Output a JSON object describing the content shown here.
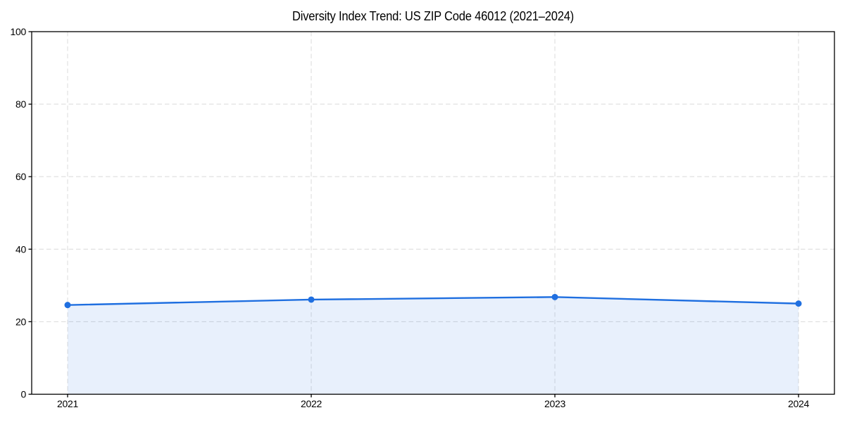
{
  "chart_data": {
    "type": "line",
    "title": "Diversity Index Trend: US ZIP Code 46012 (2021–2024)",
    "x": [
      "2021",
      "2022",
      "2023",
      "2024"
    ],
    "series": [
      {
        "name": "Diversity Index",
        "values": [
          24.6,
          26.1,
          26.8,
          25.0
        ]
      }
    ],
    "xlabel": "",
    "ylabel": "",
    "ylim": [
      0,
      100
    ],
    "yticks": [
      0,
      20,
      40,
      60,
      80,
      100
    ],
    "grid": true,
    "grid_style": "dashed",
    "legend": "none",
    "area_fill": true,
    "marker": "circle",
    "colors": {
      "line": "#1f6fe0",
      "marker": "#1f6fe0",
      "area_base": "#1f6fe0",
      "area_opacity": 0.1,
      "grid": "#dedede",
      "axis": "#000000",
      "text": "#000000",
      "background": "#ffffff"
    }
  }
}
